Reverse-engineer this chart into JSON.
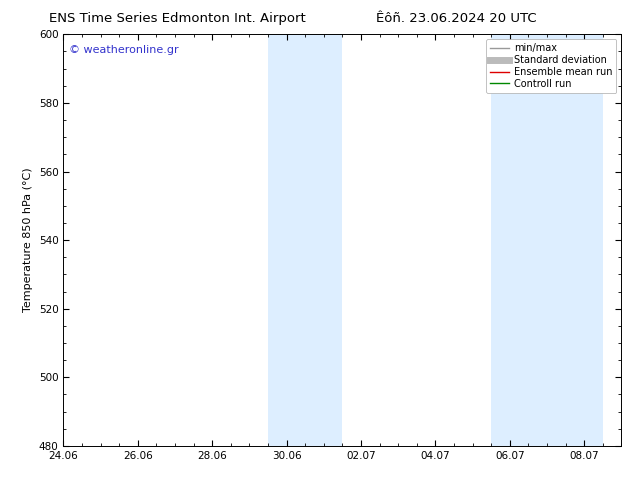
{
  "title_left": "ENS Time Series Edmonton Int. Airport",
  "title_right": "Êôñ. 23.06.2024 20 UTC",
  "ylabel": "Temperature 850 hPa (°C)",
  "ylim": [
    480,
    600
  ],
  "yticks": [
    480,
    500,
    520,
    540,
    560,
    580,
    600
  ],
  "xlim": [
    0,
    15.0
  ],
  "xtick_labels": [
    "24.06",
    "26.06",
    "28.06",
    "30.06",
    "02.07",
    "04.07",
    "06.07",
    "08.07"
  ],
  "xtick_positions": [
    0,
    2,
    4,
    6,
    8,
    10,
    12,
    14
  ],
  "shaded_regions": [
    {
      "start": 5.5,
      "end": 7.5
    },
    {
      "start": 11.5,
      "end": 14.5
    }
  ],
  "shaded_color": "#ddeeff",
  "background_color": "#ffffff",
  "watermark_text": "© weatheronline.gr",
  "watermark_color": "#3333cc",
  "legend_entries": [
    {
      "label": "min/max",
      "color": "#999999",
      "lw": 1.0
    },
    {
      "label": "Standard deviation",
      "color": "#bbbbbb",
      "lw": 5
    },
    {
      "label": "Ensemble mean run",
      "color": "#dd0000",
      "lw": 1.0
    },
    {
      "label": "Controll run",
      "color": "#008800",
      "lw": 1.0
    }
  ],
  "title_fontsize": 9.5,
  "tick_fontsize": 7.5,
  "ylabel_fontsize": 8,
  "watermark_fontsize": 8,
  "legend_fontsize": 7
}
